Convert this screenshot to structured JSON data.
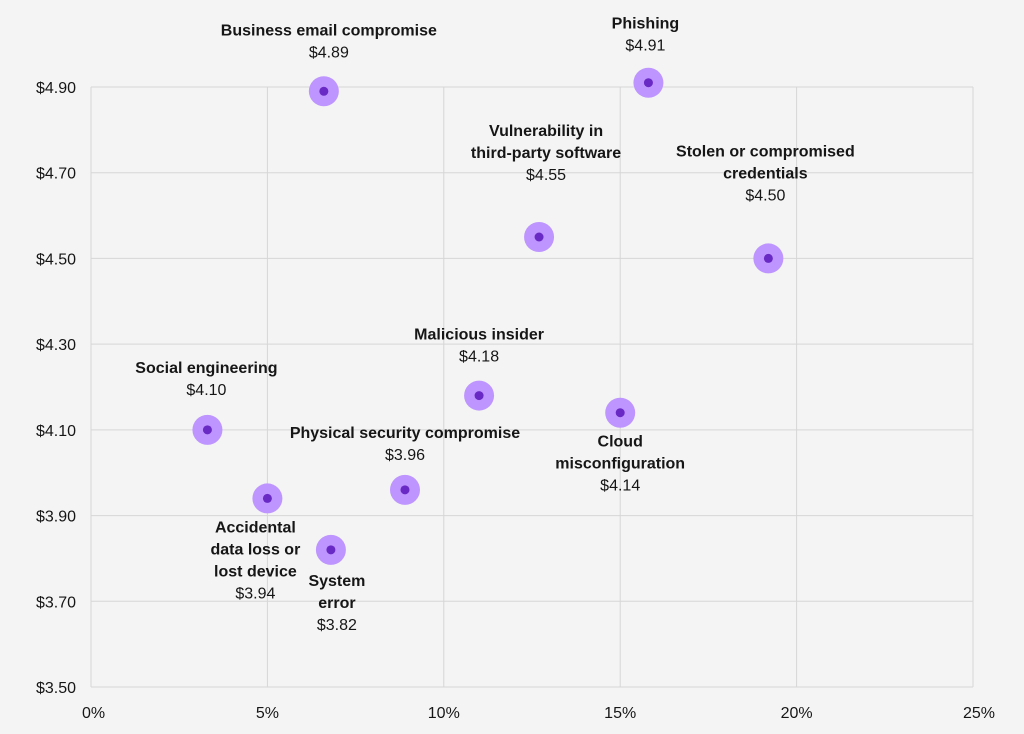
{
  "chart_data": {
    "type": "scatter",
    "title": "",
    "xlabel": "",
    "ylabel": "",
    "xlim": [
      0,
      25
    ],
    "ylim": [
      3.5,
      4.9
    ],
    "x_ticks": [
      "0%",
      "5%",
      "10%",
      "15%",
      "20%",
      "25%"
    ],
    "y_ticks": [
      "$3.50",
      "$3.70",
      "$3.90",
      "$4.10",
      "$4.30",
      "$4.50",
      "$4.70",
      "$4.90"
    ],
    "grid": true,
    "colors": {
      "marker_halo": "#be95ff",
      "marker_core": "#6929c4",
      "grid": "#d6d6d6",
      "background": "#f4f4f4"
    },
    "points": [
      {
        "name_lines": [
          "Business email compromise"
        ],
        "value_label": "$4.89",
        "x": 6.6,
        "y": 4.89
      },
      {
        "name_lines": [
          "Phishing"
        ],
        "value_label": "$4.91",
        "x": 15.8,
        "y": 4.91
      },
      {
        "name_lines": [
          "Vulnerability in",
          "third-party software"
        ],
        "value_label": "$4.55",
        "x": 12.7,
        "y": 4.55
      },
      {
        "name_lines": [
          "Stolen or compromised",
          "credentials"
        ],
        "value_label": "$4.50",
        "x": 19.2,
        "y": 4.5
      },
      {
        "name_lines": [
          "Malicious insider"
        ],
        "value_label": "$4.18",
        "x": 11.0,
        "y": 4.18
      },
      {
        "name_lines": [
          "Social engineering"
        ],
        "value_label": "$4.10",
        "x": 3.3,
        "y": 4.1
      },
      {
        "name_lines": [
          "Cloud",
          "misconfiguration"
        ],
        "value_label": "$4.14",
        "x": 15.0,
        "y": 4.14
      },
      {
        "name_lines": [
          "Physical security compromise"
        ],
        "value_label": "$3.96",
        "x": 8.9,
        "y": 3.96
      },
      {
        "name_lines": [
          "Accidental",
          "data loss or",
          "lost device"
        ],
        "value_label": "$3.94",
        "x": 5.0,
        "y": 3.94
      },
      {
        "name_lines": [
          "System",
          "error"
        ],
        "value_label": "$3.82",
        "x": 6.8,
        "y": 3.82
      }
    ]
  }
}
